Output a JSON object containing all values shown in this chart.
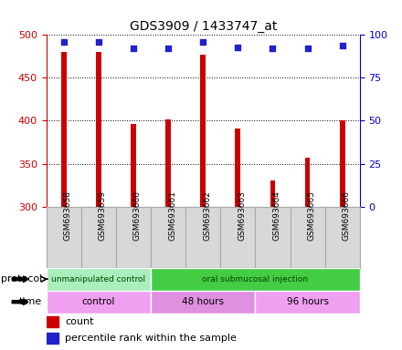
{
  "title": "GDS3909 / 1433747_at",
  "samples": [
    "GSM693658",
    "GSM693659",
    "GSM693660",
    "GSM693661",
    "GSM693662",
    "GSM693663",
    "GSM693664",
    "GSM693665",
    "GSM693666"
  ],
  "counts": [
    480,
    480,
    396,
    402,
    477,
    391,
    330,
    357,
    401
  ],
  "percentile_ranks": [
    96,
    96,
    92,
    92,
    96,
    93,
    92,
    92,
    94
  ],
  "ylim_left": [
    300,
    500
  ],
  "ylim_right": [
    0,
    100
  ],
  "yticks_left": [
    300,
    350,
    400,
    450,
    500
  ],
  "yticks_right": [
    0,
    25,
    50,
    75,
    100
  ],
  "bar_color": "#cc0000",
  "dot_color": "#2222cc",
  "protocol_groups": [
    {
      "label": "unmanipulated control",
      "start": 0,
      "end": 3,
      "color": "#aaeebb"
    },
    {
      "label": "oral submucosal injection",
      "start": 3,
      "end": 9,
      "color": "#44cc44"
    }
  ],
  "time_groups": [
    {
      "label": "control",
      "start": 0,
      "end": 3,
      "color": "#f0a0f0"
    },
    {
      "label": "48 hours",
      "start": 3,
      "end": 6,
      "color": "#e090e0"
    },
    {
      "label": "96 hours",
      "start": 6,
      "end": 9,
      "color": "#f0a0f0"
    }
  ],
  "legend_count_label": "count",
  "legend_pct_label": "percentile rank within the sample",
  "tick_label_color_left": "#cc0000",
  "tick_label_color_right": "#0000cc",
  "bar_width": 0.15,
  "tick_area_color": "#d8d8d8",
  "tick_area_border": "#aaaaaa"
}
